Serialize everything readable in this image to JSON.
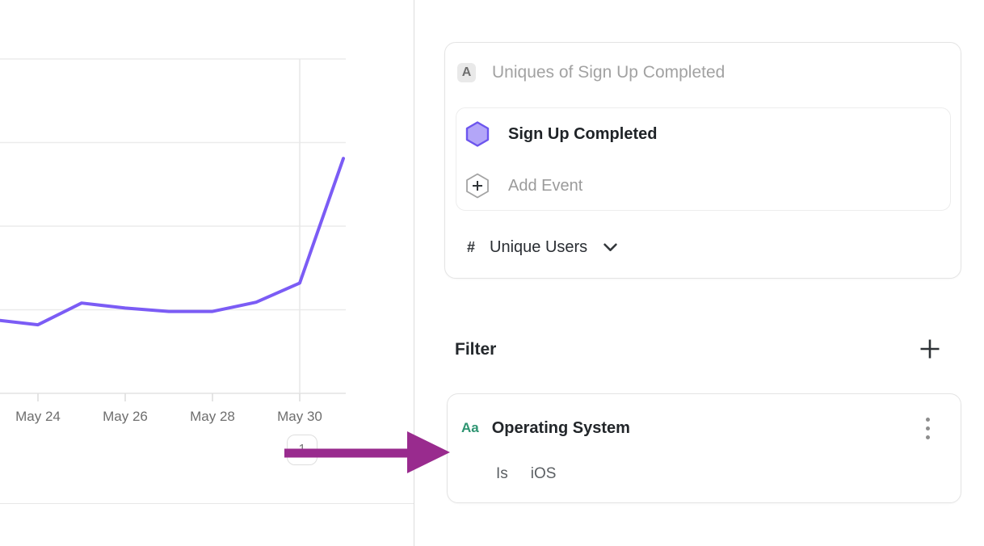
{
  "chart_data": {
    "type": "line",
    "title": "Uniques of Sign Up Completed",
    "series_name": "Sign Up Completed",
    "x": [
      "May 23",
      "May 24",
      "May 25",
      "May 26",
      "May 27",
      "May 28",
      "May 29",
      "May 30",
      "May 31"
    ],
    "values": [
      88,
      82,
      108,
      102,
      98,
      98,
      109,
      132,
      281
    ],
    "x_tick_labels": [
      "May 24",
      "May 26",
      "May 28",
      "May 30"
    ],
    "vline_at": "May 30",
    "ylabel": "Unique Users",
    "ylim": [
      0,
      400
    ],
    "gridline_values": [
      100,
      200,
      300,
      400
    ],
    "grid": true,
    "legend": false,
    "line_color": "#7b5cf5"
  },
  "pagination": {
    "page_label": "1"
  },
  "query_builder": {
    "row_label_badge": "A",
    "row_title": "Uniques of Sign Up Completed",
    "events": [
      {
        "name": "Sign Up Completed"
      }
    ],
    "add_event_label": "Add Event",
    "metric_prefix": "#",
    "metric_label": "Unique Users"
  },
  "filter_section": {
    "heading": "Filter",
    "filters": [
      {
        "type_badge": "Aa",
        "property": "Operating System",
        "operator": "Is",
        "value": "iOS"
      }
    ]
  },
  "icons": {
    "event_marker": "hexagon-icon",
    "add_event": "hexagon-plus-icon",
    "metric_dropdown": "chevron-down-icon",
    "add_filter": "plus-icon",
    "filter_menu": "kebab-menu-icon",
    "annotation": "arrow-right"
  },
  "colors": {
    "line": "#7b5cf5",
    "hexagon_fill": "#b3a6f8",
    "hexagon_stroke": "#6c55ee",
    "arrow": "#992b8e",
    "string_property_badge": "#2d9471",
    "gridline": "#ebebeb"
  }
}
